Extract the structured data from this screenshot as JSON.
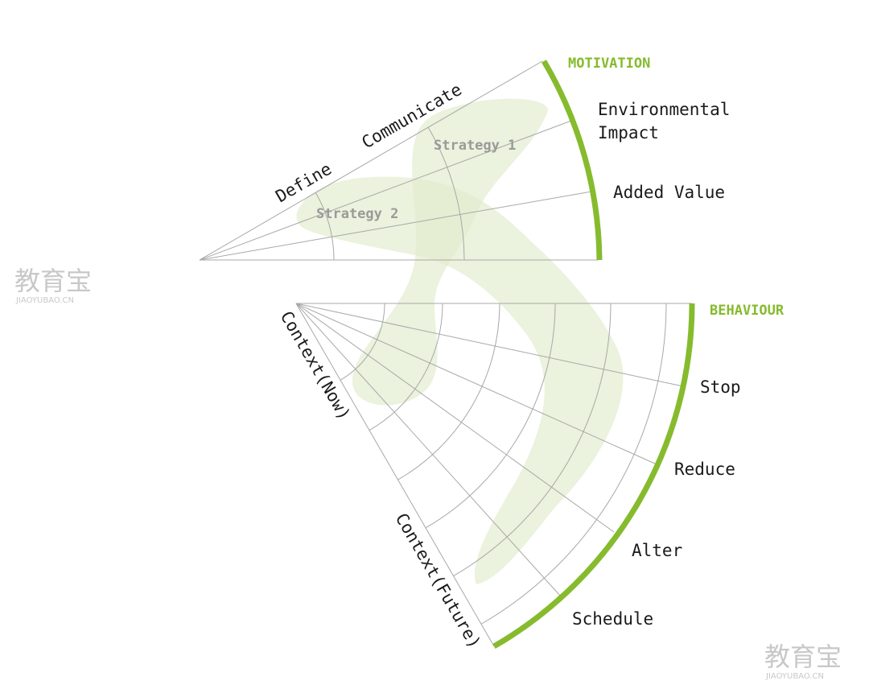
{
  "motivation": {
    "heading": "MOTIVATION",
    "labels": [
      "Environmental",
      "Impact",
      "Added Value"
    ],
    "axis_labels": [
      "Define",
      "Communicate"
    ]
  },
  "behaviour": {
    "heading": "BEHAVIOUR",
    "labels": [
      "Stop",
      "Reduce",
      "Alter",
      "Schedule"
    ],
    "axis_labels": [
      "Context(Now)",
      "Context(Future)"
    ]
  },
  "strategies": [
    "Strategy 1",
    "Strategy 2"
  ],
  "watermark": {
    "cn": "教育宝",
    "en": "JIAOYUBAO.CN"
  },
  "colors": {
    "accent": "#86bb2e",
    "grid": "#a8a8a8",
    "blob": "#e2edcf",
    "text": "#1a1a1a",
    "strategy_text": "#9a9a9a",
    "watermark": "#c8c8c8"
  }
}
